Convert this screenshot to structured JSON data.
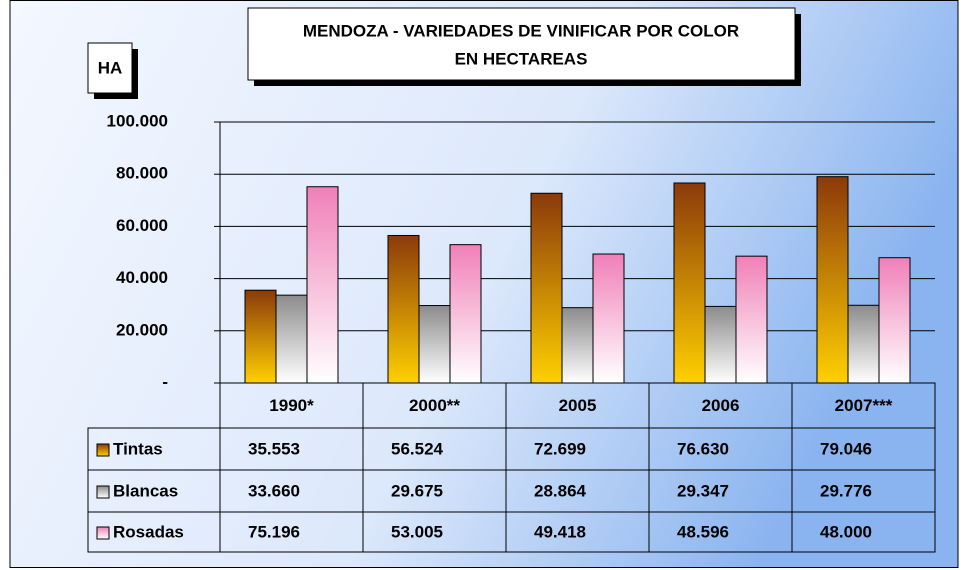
{
  "chart_data": {
    "type": "bar",
    "title": [
      "MENDOZA - VARIEDADES DE VINIFICAR POR COLOR",
      "EN HECTAREAS"
    ],
    "y_label": "HA",
    "categories": [
      "1990*",
      "2000**",
      "2005",
      "2006",
      "2007***"
    ],
    "series": [
      {
        "name": "Tintas",
        "color": "#8b3a0a",
        "values": [
          35553,
          56524,
          72699,
          76630,
          79046
        ],
        "value_labels": [
          "35.553",
          "56.524",
          "72.699",
          "76.630",
          "79.046"
        ]
      },
      {
        "name": "Blancas",
        "color": "#8c8c8c",
        "values": [
          33660,
          29675,
          28864,
          29347,
          29776
        ],
        "value_labels": [
          "33.660",
          "29.675",
          "28.864",
          "29.347",
          "29.776"
        ]
      },
      {
        "name": "Rosadas",
        "color": "#f080b8",
        "values": [
          75196,
          53005,
          49418,
          48596,
          48000
        ],
        "value_labels": [
          "75.196",
          "53.005",
          "49.418",
          "48.596",
          "48.000"
        ]
      }
    ],
    "ylim": [
      0,
      100000
    ],
    "yticks": [
      {
        "value": 0,
        "label": "-"
      },
      {
        "value": 20000,
        "label": "20.000"
      },
      {
        "value": 40000,
        "label": "40.000"
      },
      {
        "value": 60000,
        "label": "60.000"
      },
      {
        "value": 80000,
        "label": "80.000"
      },
      {
        "value": 100000,
        "label": "100.000"
      }
    ],
    "grid": true
  }
}
